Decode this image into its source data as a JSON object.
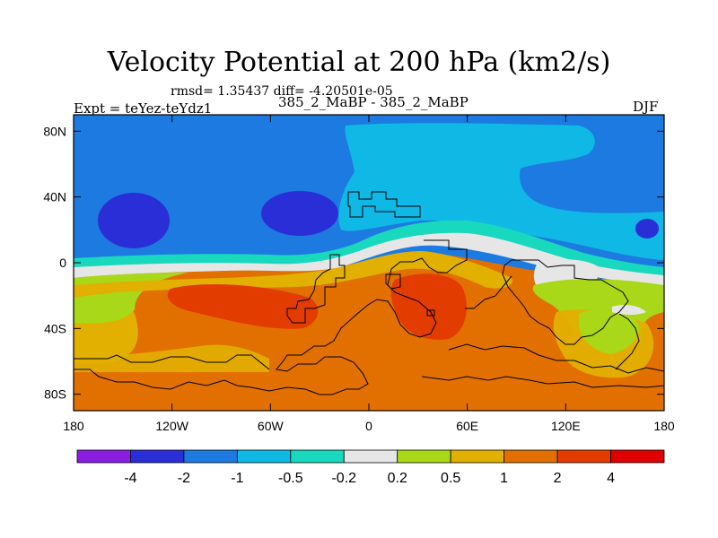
{
  "header": {
    "title": "Velocity Potential at 200 hPa (km2/s)",
    "stats": "rmsd= 1.35437 diff= -4.20501e-05",
    "experiment": "Expt = teYez-teYdz1",
    "cases": "385_2_MaBP - 385_2_MaBP",
    "season": "DJF"
  },
  "chart_data": {
    "type": "heatmap",
    "title": "Velocity Potential at 200 hPa (km2/s)",
    "xlabel": "",
    "ylabel": "",
    "xlim": [
      -180,
      180
    ],
    "ylim": [
      -90,
      90
    ],
    "x_ticks": [
      {
        "value": -180,
        "label": "180"
      },
      {
        "value": -120,
        "label": "120W"
      },
      {
        "value": -60,
        "label": "60W"
      },
      {
        "value": 0,
        "label": "0"
      },
      {
        "value": 60,
        "label": "60E"
      },
      {
        "value": 120,
        "label": "120E"
      },
      {
        "value": 180,
        "label": "180"
      }
    ],
    "y_ticks": [
      {
        "value": 80,
        "label": "80N"
      },
      {
        "value": 40,
        "label": "40N"
      },
      {
        "value": 0,
        "label": "0"
      },
      {
        "value": -40,
        "label": "40S"
      },
      {
        "value": -80,
        "label": "80S"
      }
    ],
    "colorbar": {
      "labels": [
        "-4",
        "-2",
        "-1",
        "-0.5",
        "-0.2",
        "0.2",
        "0.5",
        "1",
        "2",
        "4"
      ],
      "colors": [
        "#8a1ee0",
        "#2a2ed6",
        "#1c7ae0",
        "#10b8e6",
        "#18d8be",
        "#e6e6e6",
        "#a8d818",
        "#e2b000",
        "#e27000",
        "#e23c00",
        "#e00000"
      ]
    },
    "regions": [
      {
        "name": "northern-belt",
        "level": "-2 to -1"
      },
      {
        "name": "north-atlantic-europe",
        "level": "-1 to -0.5"
      },
      {
        "name": "north-pacific-low",
        "level": "-4 to -2"
      },
      {
        "name": "north-america-low",
        "level": "-4 to -2"
      },
      {
        "name": "dateline-low",
        "level": "-4 to -2"
      },
      {
        "name": "equatorial-band",
        "level": "-0.5 to 0.5"
      },
      {
        "name": "southern-belt",
        "level": "1 to 2"
      },
      {
        "name": "south-pacific-high",
        "level": "2 to 4"
      },
      {
        "name": "southern-africa-high",
        "level": "2 to 4"
      },
      {
        "name": "australia-region",
        "level": "0.2 to 1"
      }
    ]
  }
}
